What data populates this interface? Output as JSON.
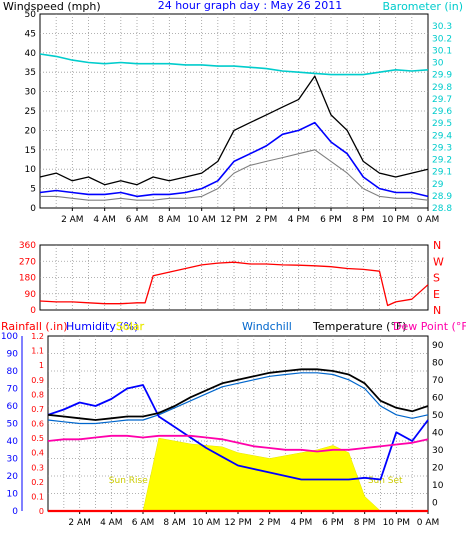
{
  "chart_data": [
    {
      "type": "line",
      "title": "24 hour graph day : May 26 2011",
      "ylabel_left": "Windspeed (mph)",
      "ylabel_right": "Barometer (in)",
      "x_ticks": [
        "2 AM",
        "4 AM",
        "6 AM",
        "8 AM",
        "10 AM",
        "12 PM",
        "2 PM",
        "4 PM",
        "6 PM",
        "8 PM",
        "10 PM",
        "0 AM"
      ],
      "ylim_left": [
        0,
        50
      ],
      "yticks_left": [
        "0",
        "5",
        "10",
        "15",
        "20",
        "25",
        "30",
        "35",
        "40",
        "45",
        "50"
      ],
      "ylim_right": [
        28.8,
        30.4
      ],
      "yticks_right": [
        "28.8",
        "28.9",
        "29",
        "29.1",
        "29.2",
        "29.3",
        "29.4",
        "29.5",
        "29.6",
        "29.7",
        "29.8",
        "29.9",
        "30",
        "30.1",
        "30.2",
        "30.3"
      ],
      "grid": true,
      "colors": {
        "gust": "#000000",
        "avg": "#0000ff",
        "speed": "#808080",
        "barometer": "#00cccc",
        "title": "#0000ff"
      },
      "x_hours": [
        0,
        1,
        2,
        3,
        4,
        5,
        6,
        7,
        8,
        9,
        10,
        11,
        12,
        13,
        14,
        15,
        16,
        17,
        18,
        19,
        20,
        21,
        22,
        23,
        24
      ],
      "series": [
        {
          "key": "gust",
          "axis": "left",
          "values": [
            8,
            9,
            7,
            8,
            6,
            7,
            6,
            8,
            7,
            8,
            9,
            12,
            20,
            22,
            24,
            26,
            28,
            34,
            24,
            20,
            12,
            9,
            8,
            9,
            10
          ]
        },
        {
          "key": "avg",
          "axis": "left",
          "values": [
            4,
            4.5,
            4,
            3.5,
            3.5,
            4,
            3,
            3.5,
            3.5,
            4,
            5,
            7,
            12,
            14,
            16,
            19,
            20,
            22,
            17,
            14,
            8,
            5,
            4,
            4,
            3
          ]
        },
        {
          "key": "speed",
          "axis": "left",
          "values": [
            3,
            3,
            2.5,
            2,
            2,
            2.5,
            2,
            2,
            2.5,
            2.5,
            3,
            5,
            9,
            11,
            12,
            13,
            14,
            15,
            12,
            9,
            5,
            3,
            2.5,
            2.5,
            2
          ]
        },
        {
          "key": "barometer",
          "axis": "right",
          "values": [
            30.07,
            30.05,
            30.02,
            30.0,
            29.99,
            30.0,
            29.99,
            29.99,
            29.99,
            29.98,
            29.98,
            29.97,
            29.97,
            29.96,
            29.95,
            29.93,
            29.92,
            29.91,
            29.9,
            29.9,
            29.9,
            29.92,
            29.94,
            29.93,
            29.94
          ]
        }
      ]
    },
    {
      "type": "line",
      "yticks_left": [
        "0",
        "90",
        "180",
        "270",
        "360"
      ],
      "ylim_left": [
        0,
        360
      ],
      "yticks_right": [
        "N",
        "E",
        "S",
        "W",
        "N"
      ],
      "colors": {
        "direction": "#ff0000"
      },
      "x_hours": [
        0,
        1,
        2,
        3,
        4,
        5,
        6,
        6.5,
        7,
        8,
        9,
        10,
        11,
        12,
        13,
        14,
        15,
        16,
        17,
        18,
        19,
        20,
        21,
        21.5,
        22,
        23,
        24
      ],
      "series": [
        {
          "key": "direction",
          "values": [
            50,
            45,
            45,
            40,
            35,
            35,
            40,
            40,
            190,
            210,
            230,
            250,
            260,
            265,
            255,
            255,
            250,
            248,
            245,
            240,
            230,
            225,
            215,
            25,
            45,
            60,
            140
          ]
        }
      ]
    },
    {
      "type": "line",
      "legend": {
        "rainfall": "Rainfall (.in)",
        "humidity": "Humidity (%)",
        "solar": "Solar",
        "windchill": "Windchill",
        "temperature": "Temperature (°F)",
        "dewpoint": "Dew Point (°F)"
      },
      "annotations": [
        "Sun Rise",
        "Sun Set"
      ],
      "yticks_rain": [
        "0",
        "0.1",
        "0.2",
        "0.3",
        "0.4",
        "0.5",
        "0.6",
        "0.7",
        "0.8",
        "0.9",
        "1",
        "1.1",
        "1.2"
      ],
      "yticks_humidity": [
        "0",
        "10",
        "20",
        "30",
        "40",
        "50",
        "60",
        "70",
        "80",
        "90",
        "100"
      ],
      "yticks_temp": [
        "0",
        "10",
        "20",
        "30",
        "40",
        "50",
        "60",
        "70",
        "80",
        "90"
      ],
      "ylim_temp": [
        -5,
        95
      ],
      "ylim_humidity": [
        0,
        100
      ],
      "ylim_rain": [
        0,
        1.2
      ],
      "colors": {
        "rainfall": "#ff0000",
        "humidity": "#0000ff",
        "solar": "#ffff00",
        "windchill": "#0066cc",
        "temperature": "#000000",
        "dewpoint": "#ff00aa"
      },
      "x_hours": [
        0,
        1,
        2,
        3,
        4,
        5,
        6,
        7,
        8,
        9,
        10,
        11,
        12,
        13,
        14,
        15,
        16,
        17,
        18,
        19,
        20,
        21,
        22,
        23,
        24
      ],
      "series": [
        {
          "key": "solar",
          "values": [
            0,
            0,
            0,
            0,
            0,
            0,
            0,
            0.5,
            0.48,
            0.46,
            0.45,
            0.44,
            0.4,
            0.38,
            0.36,
            0.38,
            0.4,
            0.42,
            0.45,
            0.4,
            0.1,
            0,
            0,
            0,
            0
          ]
        },
        {
          "key": "humidity",
          "values": [
            55,
            58,
            62,
            60,
            64,
            70,
            72,
            54,
            48,
            42,
            36,
            31,
            26,
            24,
            22,
            20,
            18,
            18,
            18,
            18,
            19,
            18,
            45,
            40,
            52
          ]
        },
        {
          "key": "temperature",
          "values": [
            50,
            49,
            48,
            47,
            48,
            49,
            49,
            51,
            55,
            60,
            64,
            68,
            70,
            72,
            74,
            75,
            76,
            76,
            75,
            73,
            68,
            58,
            54,
            52,
            55
          ]
        },
        {
          "key": "windchill",
          "values": [
            47,
            46,
            45,
            45,
            46,
            47,
            47,
            50,
            54,
            58,
            62,
            66,
            68,
            70,
            72,
            73,
            74,
            74,
            73,
            70,
            65,
            55,
            50,
            48,
            50
          ]
        },
        {
          "key": "dewpoint",
          "values": [
            35,
            36,
            36,
            37,
            38,
            38,
            37,
            38,
            38,
            38,
            37,
            36,
            34,
            32,
            31,
            30,
            30,
            29,
            30,
            30,
            31,
            32,
            33,
            34,
            36
          ]
        },
        {
          "key": "rainfall",
          "values": [
            0,
            0,
            0,
            0,
            0,
            0,
            0,
            0,
            0,
            0,
            0,
            0,
            0,
            0,
            0,
            0,
            0,
            0,
            0,
            0,
            0,
            0,
            0,
            0,
            0
          ]
        }
      ]
    }
  ]
}
